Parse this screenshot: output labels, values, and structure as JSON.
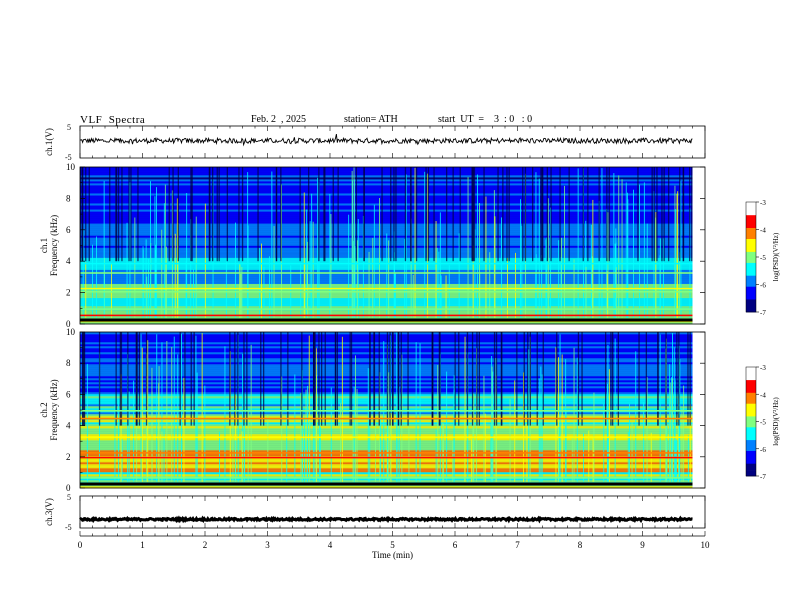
{
  "header": {
    "title": "VLF  Spectra",
    "date": "Feb. 2  , 2025",
    "station": "station= ATH",
    "start": "start  UT  =    3  : 0   : 0"
  },
  "colors": {
    "jet": [
      "#000080",
      "#0000ff",
      "#0080ff",
      "#00ffff",
      "#80ff80",
      "#ffff00",
      "#ff8000",
      "#ff0000",
      "#ffffff"
    ],
    "axes": "#000000",
    "background": "#ffffff"
  },
  "chart_data": [
    {
      "type": "line",
      "name": "ch1-waveform",
      "ylabel": "ch.1(V)",
      "ylim": [
        -5,
        5
      ],
      "yticks": [
        "5",
        "-5"
      ],
      "xlim": [
        0,
        10
      ],
      "baseline_v": 0.4,
      "amplitude_v": 0.8
    },
    {
      "type": "heatmap",
      "name": "ch1-spectrogram",
      "ylabel": [
        "ch.1",
        "Frequency (kHz)"
      ],
      "xlim": [
        0,
        10
      ],
      "ylim": [
        0,
        10
      ],
      "yticks": [
        "0",
        "2",
        "4",
        "6",
        "8",
        "10"
      ],
      "colorbar": {
        "label": "log(PSD)(V²/Hz)",
        "ticks": [
          "-3",
          "-4",
          "-5",
          "-6",
          "-7"
        ],
        "range": [
          -7,
          -3
        ]
      }
    },
    {
      "type": "heatmap",
      "name": "ch2-spectrogram",
      "ylabel": [
        "ch.2",
        "Frequency (kHz)"
      ],
      "xlim": [
        0,
        10
      ],
      "ylim": [
        0,
        10
      ],
      "yticks": [
        "0",
        "2",
        "4",
        "6",
        "8",
        "10"
      ],
      "colorbar": {
        "label": "log(PSD)(V²/Hz)",
        "ticks": [
          "-3",
          "-4",
          "-5",
          "-6",
          "-7"
        ],
        "range": [
          -7,
          -3
        ]
      }
    },
    {
      "type": "line",
      "name": "ch3-waveform",
      "ylabel": "ch.3(V)",
      "ylim": [
        -5,
        5
      ],
      "yticks": [
        "5",
        "-5"
      ],
      "xlim": [
        0,
        10
      ],
      "baseline_v": -2.3,
      "amplitude_v": 0.3
    }
  ],
  "xaxis": {
    "label": "Time  (min)",
    "ticks": [
      "0",
      "1",
      "2",
      "3",
      "4",
      "5",
      "6",
      "7",
      "8",
      "9",
      "10"
    ]
  }
}
